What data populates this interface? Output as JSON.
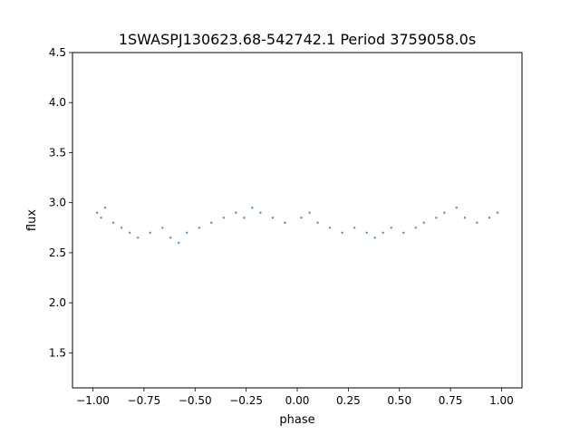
{
  "chart_data": {
    "type": "scatter",
    "title": "1SWASPJ130623.68-542742.1 Period 3759058.0s",
    "xlabel": "phase",
    "ylabel": "flux",
    "xlim": [
      -1.1,
      1.1
    ],
    "ylim": [
      1.15,
      4.5
    ],
    "xticks": [
      -1.0,
      -0.75,
      -0.5,
      -0.25,
      0.0,
      0.25,
      0.5,
      0.75,
      1.0
    ],
    "xtick_labels": [
      "−1.00",
      "−0.75",
      "−0.50",
      "−0.25",
      "0.00",
      "0.25",
      "0.50",
      "0.75",
      "1.00"
    ],
    "yticks": [
      1.5,
      2.0,
      2.5,
      3.0,
      3.5,
      4.0,
      4.5
    ],
    "ytick_labels": [
      "1.5",
      "2.0",
      "2.5",
      "3.0",
      "3.5",
      "4.0",
      "4.5"
    ],
    "grid": false,
    "marker_color": "#1f77b4",
    "series": [
      {
        "x": [
          -0.98,
          -0.96,
          -0.94,
          -0.9,
          -0.86,
          -0.82,
          -0.78,
          -0.72,
          -0.66,
          -0.62,
          -0.58,
          -0.54,
          -0.48,
          -0.42,
          -0.36,
          -0.3,
          -0.26,
          -0.22,
          -0.18,
          -0.12,
          -0.06,
          0.02,
          0.06,
          0.1,
          0.16,
          0.22,
          0.28,
          0.34,
          0.38,
          0.42,
          0.46,
          0.52,
          0.58,
          0.62,
          0.68,
          0.72,
          0.78,
          0.82,
          0.88,
          0.94,
          0.98
        ],
        "y": [
          2.9,
          2.85,
          2.95,
          2.8,
          2.75,
          2.7,
          2.65,
          2.7,
          2.75,
          2.65,
          2.6,
          2.7,
          2.75,
          2.8,
          2.85,
          2.9,
          2.85,
          2.95,
          2.9,
          2.85,
          2.8,
          2.85,
          2.9,
          2.8,
          2.75,
          2.7,
          2.75,
          2.7,
          2.65,
          2.7,
          2.75,
          2.7,
          2.75,
          2.8,
          2.85,
          2.9,
          2.95,
          2.85,
          2.8,
          2.85,
          2.9
        ]
      }
    ]
  }
}
